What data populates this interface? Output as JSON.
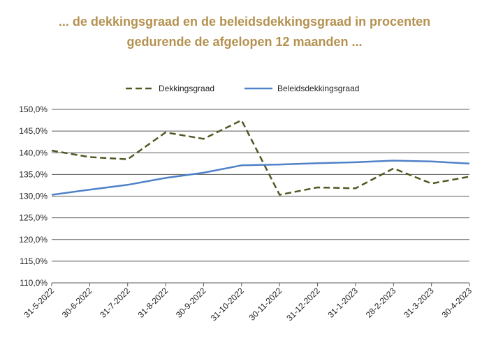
{
  "title_line1": "... de dekkingsgraad en de beleidsdekkingsgraad in procenten",
  "title_line2": "gedurende de afgelopen 12 maanden ...",
  "colors": {
    "title": "#b4914f",
    "dekkingsgraad": "#4e5a23",
    "beleidsdekkingsgraad": "#4f81c7",
    "grid": "#5a5a5a"
  },
  "chart_data": {
    "type": "line",
    "categories": [
      "31-5-2022",
      "30-6-2022",
      "31-7-2022",
      "31-8-2022",
      "30-9-2022",
      "31-10-2022",
      "30-11-2022",
      "31-12-2022",
      "31-1-2023",
      "28-2-2023",
      "31-3-2023",
      "30-4-2023"
    ],
    "series": [
      {
        "name": "Dekkingsgraad",
        "style": "dashed",
        "values": [
          140.5,
          139.0,
          138.5,
          144.7,
          143.2,
          147.5,
          130.3,
          132.0,
          131.8,
          136.4,
          132.9,
          134.5
        ]
      },
      {
        "name": "Beleidsdekkingsgraad",
        "style": "solid",
        "values": [
          130.3,
          131.5,
          132.6,
          134.2,
          135.4,
          137.1,
          137.3,
          137.6,
          137.8,
          138.2,
          138.0,
          137.5
        ]
      }
    ],
    "ylim": [
      110,
      150
    ],
    "yticks": [
      "110,0%",
      "115,0%",
      "120,0%",
      "125,0%",
      "130,0%",
      "135,0%",
      "140,0%",
      "145,0%",
      "150,0%"
    ],
    "grid": true,
    "legend": "top-center"
  }
}
